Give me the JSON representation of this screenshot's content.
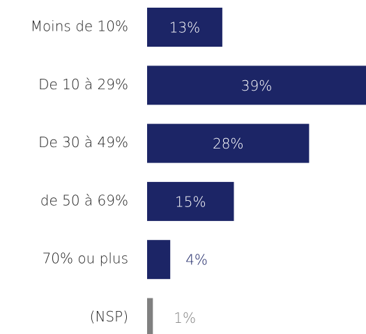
{
  "chart_data": {
    "type": "bar",
    "orientation": "horizontal",
    "categories": [
      "Moins de 10%",
      "De 10 à 29%",
      "De 30 à 49%",
      "de 50 à 69%",
      "70% ou plus",
      "(NSP)"
    ],
    "values": [
      13,
      39,
      28,
      15,
      4,
      1
    ],
    "value_labels": [
      "13%",
      "39%",
      "28%",
      "15%",
      "4%",
      "1%"
    ],
    "colors": [
      "#1c2566",
      "#1c2566",
      "#1c2566",
      "#1c2566",
      "#1c2566",
      "#808080"
    ]
  }
}
